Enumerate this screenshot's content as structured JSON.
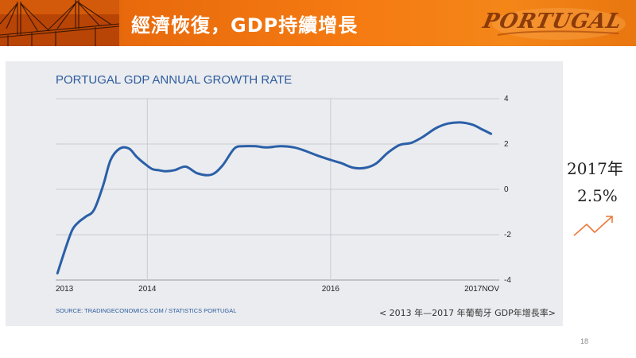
{
  "slide": {
    "title": "經濟恢復，GDP持續增長",
    "logo_text": "PORTUGAL",
    "side_year": "2017年",
    "side_value": "2.5%",
    "page_number": "18",
    "caption": "< 2013 年—2017 年葡萄牙 GDP年增長率>",
    "source": "SOURCE: TRADINGECONOMICS.COM / STATISTICS PORTUGAL"
  },
  "chart_data": {
    "type": "line",
    "title": "PORTUGAL GDP ANNUAL GROWTH RATE",
    "xlabel": "",
    "ylabel": "",
    "x_ticks": [
      "2013",
      "2014",
      "2016",
      "2017NOV"
    ],
    "x_tick_positions": [
      2013.0,
      2014.0,
      2016.0,
      2017.84
    ],
    "y_ticks": [
      "4",
      "2",
      "0",
      "-2",
      "-4"
    ],
    "y_tick_values": [
      4,
      2,
      0,
      -2,
      -4
    ],
    "ylim": [
      -4,
      4
    ],
    "xlim": [
      2013.0,
      2017.84
    ],
    "grid": true,
    "line_color": "#2a5fa8",
    "series": [
      {
        "x": [
          2013.02,
          2013.1,
          2013.18,
          2013.25,
          2013.33,
          2013.42,
          2013.52,
          2013.6,
          2013.7,
          2013.8,
          2013.88,
          2013.95,
          2014.05,
          2014.12,
          2014.2,
          2014.3,
          2014.42,
          2014.55,
          2014.7,
          2014.82,
          2014.95,
          2015.05,
          2015.18,
          2015.3,
          2015.45,
          2015.6,
          2015.72,
          2015.85,
          2016.0,
          2016.12,
          2016.25,
          2016.38,
          2016.5,
          2016.62,
          2016.75,
          2016.88,
          2017.0,
          2017.15,
          2017.28,
          2017.42,
          2017.55,
          2017.65,
          2017.75
        ],
        "y": [
          -3.7,
          -2.7,
          -1.8,
          -1.45,
          -1.2,
          -0.9,
          0.2,
          1.3,
          1.8,
          1.8,
          1.45,
          1.2,
          0.9,
          0.85,
          0.8,
          0.85,
          1.0,
          0.7,
          0.65,
          1.05,
          1.8,
          1.9,
          1.9,
          1.85,
          1.9,
          1.85,
          1.7,
          1.5,
          1.3,
          1.15,
          0.95,
          0.95,
          1.15,
          1.6,
          1.95,
          2.05,
          2.3,
          2.7,
          2.9,
          2.95,
          2.85,
          2.65,
          2.45
        ]
      }
    ]
  },
  "arrow_color": "#ec7a3a"
}
